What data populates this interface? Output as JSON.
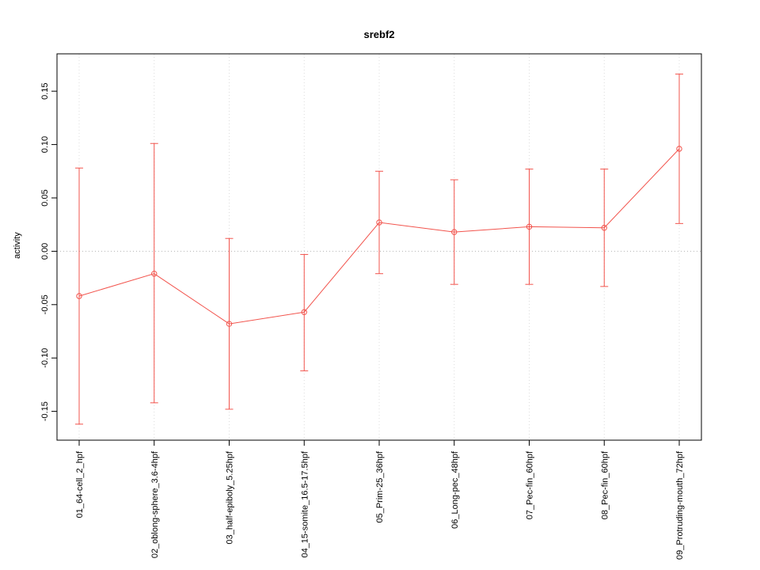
{
  "figure": {
    "background": "#ffffff"
  },
  "chart_data": {
    "type": "line",
    "title": "srebf2",
    "xlabel": "",
    "ylabel": "activity",
    "ylim": [
      -0.177,
      0.185
    ],
    "yticks": [
      -0.15,
      -0.1,
      -0.05,
      0.0,
      0.05,
      0.1,
      0.15
    ],
    "ytick_labels": [
      "-0.15",
      "-0.10",
      "-0.05",
      "0.00",
      "0.05",
      "0.10",
      "0.15"
    ],
    "categories": [
      "01_64-cell_2_hpf",
      "02_oblong-sphere_3.6-4hpf",
      "03_half-epiboly_5.25hpf",
      "04_15-somite_16.5-17.5hpf",
      "05_Prim-25_36hpf",
      "06_Long-pec_48hpf",
      "07_Pec-fin_60hpf",
      "08_Pec-fin_60hpf",
      "09_Protruding-mouth_72hpf"
    ],
    "series": [
      {
        "name": "srebf2 activity",
        "values": [
          -0.042,
          -0.021,
          -0.068,
          -0.057,
          0.027,
          0.018,
          0.023,
          0.022,
          0.096
        ],
        "lower": [
          -0.162,
          -0.142,
          -0.148,
          -0.112,
          -0.021,
          -0.031,
          -0.031,
          -0.033,
          0.026
        ],
        "upper": [
          0.078,
          0.101,
          0.012,
          -0.003,
          0.075,
          0.067,
          0.077,
          0.077,
          0.166
        ]
      }
    ],
    "zero_line": true,
    "grid": "vertical-dotted",
    "legend": "none",
    "point_style": "open-circle",
    "colors": {
      "series": "#f2544d",
      "zero_line": "#b4b4b4",
      "grid": "#dcdcdc",
      "axis": "#000000"
    }
  }
}
